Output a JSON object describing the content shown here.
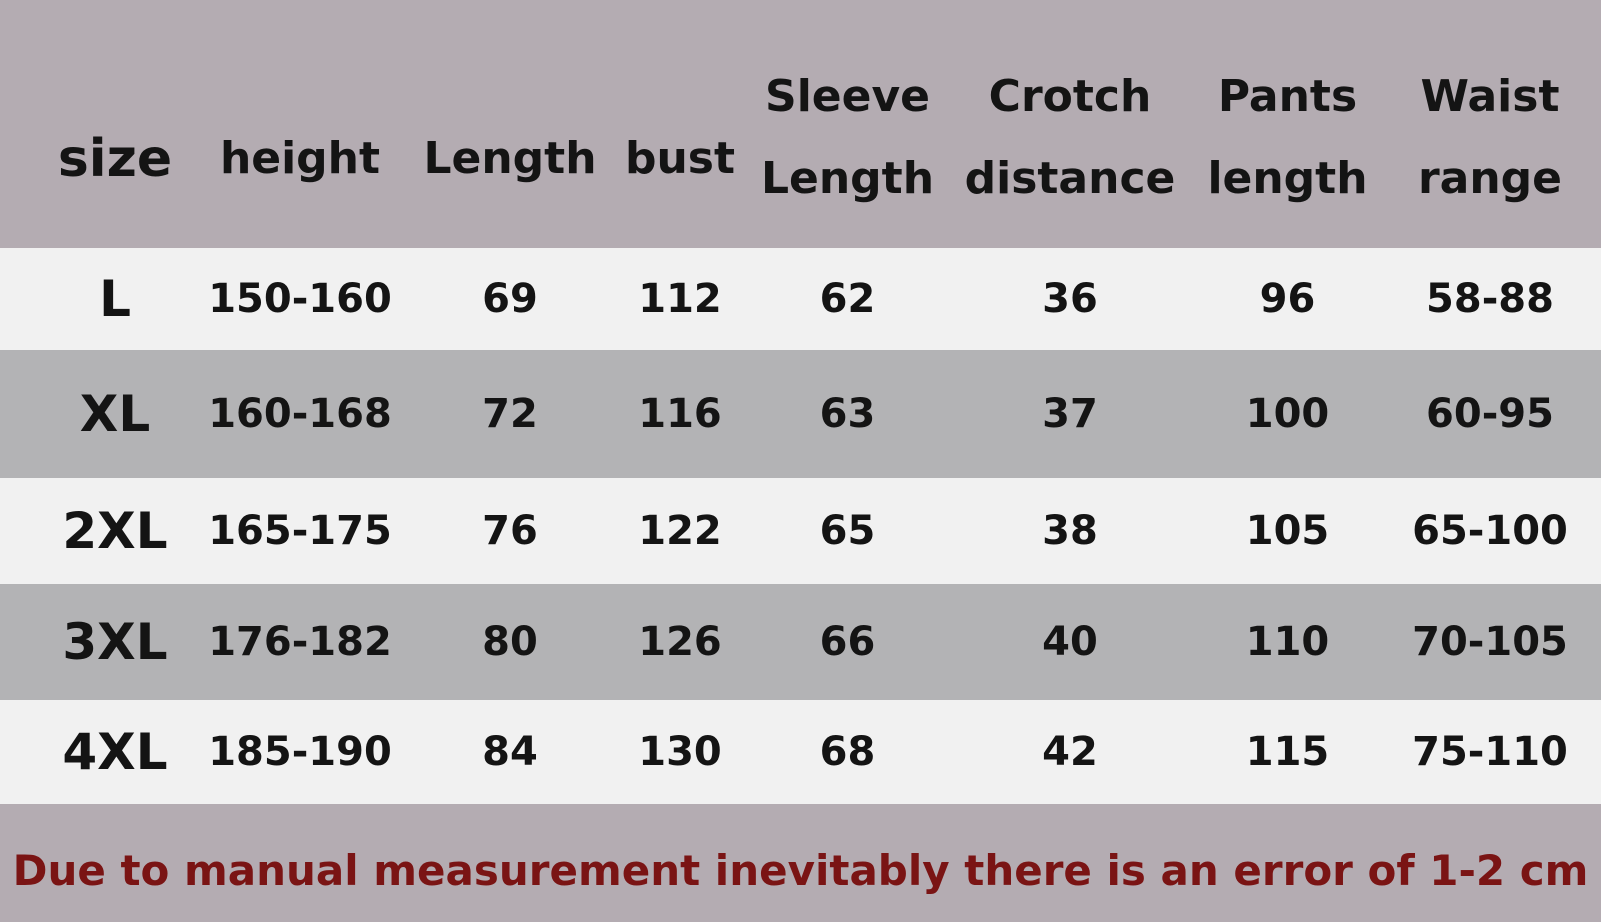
{
  "headers": {
    "size": "size",
    "height": "height",
    "length": "Length",
    "bust": "bust",
    "sleeve": [
      "Sleeve",
      "Length"
    ],
    "crotch": [
      "Crotch",
      "distance"
    ],
    "pants": [
      "Pants",
      "length"
    ],
    "waist": [
      "Waist",
      "range"
    ]
  },
  "rows": [
    {
      "size": "L",
      "height": "150-160",
      "length": "69",
      "bust": "112",
      "sleeve": "62",
      "crotch": "36",
      "pants": "96",
      "waist": "58-88"
    },
    {
      "size": "XL",
      "height": "160-168",
      "length": "72",
      "bust": "116",
      "sleeve": "63",
      "crotch": "37",
      "pants": "100",
      "waist": "60-95"
    },
    {
      "size": "2XL",
      "height": "165-175",
      "length": "76",
      "bust": "122",
      "sleeve": "65",
      "crotch": "38",
      "pants": "105",
      "waist": "65-100"
    },
    {
      "size": "3XL",
      "height": "176-182",
      "length": "80",
      "bust": "126",
      "sleeve": "66",
      "crotch": "40",
      "pants": "110",
      "waist": "70-105"
    },
    {
      "size": "4XL",
      "height": "185-190",
      "length": "84",
      "bust": "130",
      "sleeve": "68",
      "crotch": "42",
      "pants": "115",
      "waist": "75-110"
    }
  ],
  "note": "Due to manual measurement inevitably there is an error of 1-2 cm"
}
